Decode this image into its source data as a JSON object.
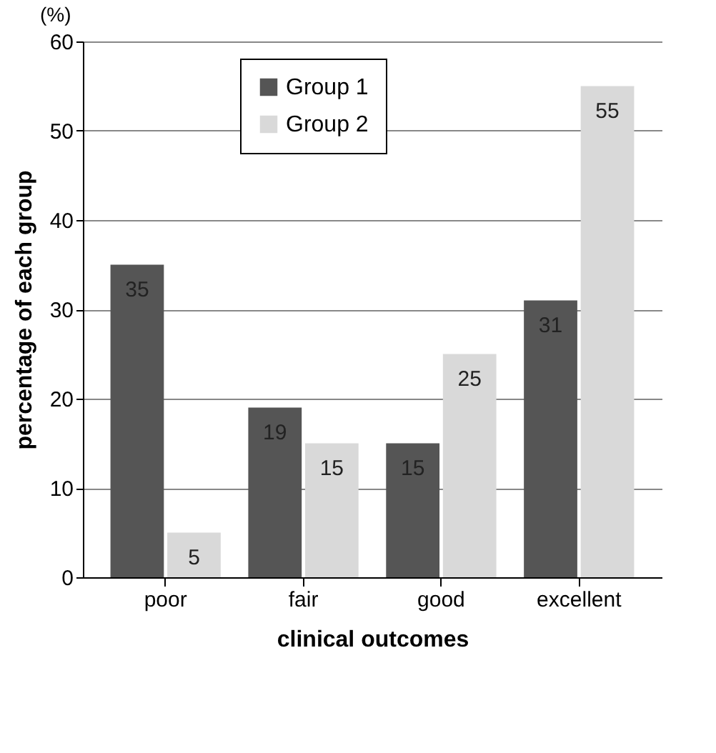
{
  "chart_data": {
    "type": "bar",
    "xlabel": "clinical outcomes",
    "ylabel": "percentage of each group",
    "annotations": [
      "(%)"
    ],
    "categories": [
      "poor",
      "fair",
      "good",
      "excellent"
    ],
    "series": [
      {
        "name": "Group 1",
        "color": "#555555",
        "values": [
          35,
          19,
          15,
          31
        ]
      },
      {
        "name": "Group 2",
        "color": "#d9d9d9",
        "values": [
          5,
          15,
          25,
          55
        ]
      }
    ],
    "ylim": [
      0,
      60
    ],
    "yticks": [
      0,
      10,
      20,
      30,
      40,
      50,
      60
    ],
    "grid": "y",
    "legend": "top",
    "data_labels": true
  }
}
